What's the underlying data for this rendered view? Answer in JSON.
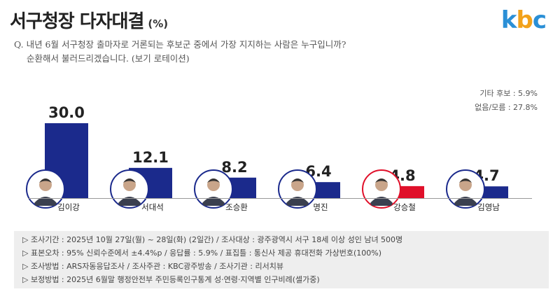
{
  "header": {
    "title": "서구청장 다자대결",
    "unit": "(%)",
    "logo": [
      "k",
      "b",
      "c"
    ]
  },
  "question": {
    "line1": "Q. 내년 6월 서구청장 출마자로 거론되는 후보군 중에서 가장 지지하는 사람은 누구입니까?",
    "line2": "순환해서 불러드리겠습니다. (보기 로테이션)"
  },
  "others": {
    "etc": "기타 후보 : 5.9%",
    "unknown": "없음/모름 : 27.8%"
  },
  "chart_data": {
    "type": "bar",
    "title": "서구청장 다자대결",
    "categories": [
      "김이강",
      "서대석",
      "조승환",
      "명진",
      "강승철",
      "김영남"
    ],
    "values": [
      30.0,
      12.1,
      8.2,
      6.4,
      4.8,
      4.7
    ],
    "value_labels": [
      "30.0",
      "12.1",
      "8.2",
      "6.4",
      "4.8",
      "4.7"
    ],
    "ylim": [
      0,
      30
    ],
    "grid": false,
    "colors": [
      "#1b2a8c",
      "#1b2a8c",
      "#1b2a8c",
      "#1b2a8c",
      "#e0102a",
      "#1b2a8c"
    ],
    "avatar_border": [
      "#1b2a8c",
      "#1b2a8c",
      "#1b2a8c",
      "#1b2a8c",
      "#e0102a",
      "#1b2a8c"
    ]
  },
  "footer": {
    "lines": [
      "▷ 조사기간 : 2025년 10월 27일(월) ~ 28일(화) (2일간) / 조사대상 : 광주광역시 서구 18세 이상 성인 남녀 500명",
      "▷ 표본오차 : 95% 신뢰수준에서 ±4.4%p / 응답률 : 5.9% / 표집틀 : 통신사 제공 휴대전화 가상번호(100%)",
      "▷ 조사방법 : ARS자동응답조사 / 조사주관 : KBC광주방송 / 조사기관 : 리서치뷰",
      "▷ 보정방법 : 2025년 6월말 행정안전부 주민등록인구통계 성·연령·지역별 인구비례(셀가중)"
    ]
  }
}
